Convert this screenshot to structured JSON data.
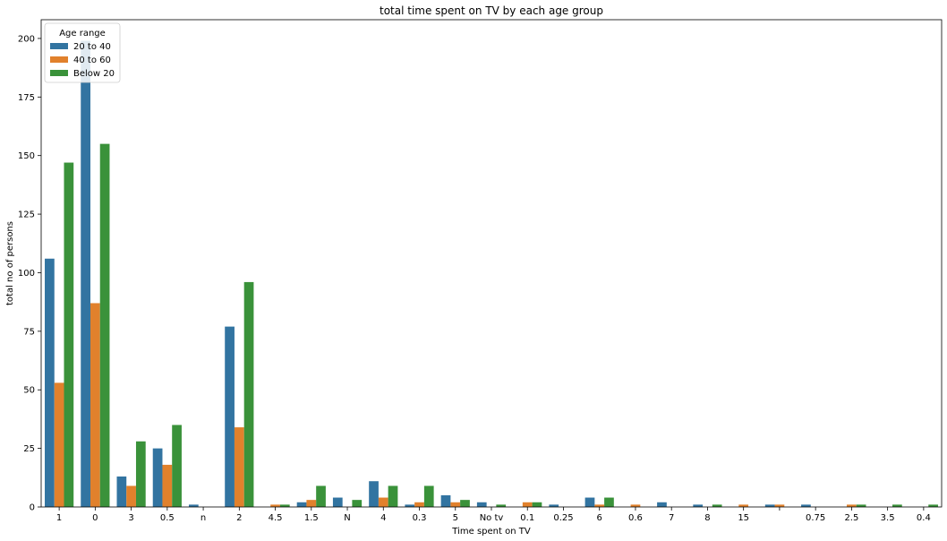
{
  "chart_data": {
    "type": "bar",
    "title": "total time spent on TV by each age group",
    "xlabel": "Time spent on TV",
    "ylabel": "total no of persons",
    "ylim": [
      0,
      208
    ],
    "yticks": [
      0,
      25,
      50,
      75,
      100,
      125,
      150,
      175,
      200
    ],
    "grid": false,
    "legend": {
      "title": "Age range",
      "placement": "top-left"
    },
    "categories": [
      "1",
      "0",
      "3",
      "0.5",
      "n",
      "2",
      "4.5",
      "1.5",
      "N",
      "4",
      "0.3",
      "5",
      "No tv",
      "0.1",
      "0.25",
      "6",
      "0.6",
      "7",
      "8",
      "15",
      "",
      "0.75",
      "2.5",
      "3.5",
      "0.4"
    ],
    "series": [
      {
        "name": "20 to 40",
        "color": "#3274a1",
        "values": [
          106,
          199,
          13,
          25,
          1,
          77,
          0,
          2,
          4,
          11,
          1,
          5,
          2,
          0,
          1,
          4,
          0,
          2,
          1,
          0,
          1,
          1,
          0,
          0,
          0
        ]
      },
      {
        "name": "40 to 60",
        "color": "#e1812c",
        "values": [
          53,
          87,
          9,
          18,
          0,
          34,
          1,
          3,
          0,
          4,
          2,
          2,
          0,
          2,
          0,
          1,
          1,
          0,
          0,
          1,
          1,
          0,
          1,
          0,
          0
        ]
      },
      {
        "name": "Below 20",
        "color": "#3a923a",
        "values": [
          147,
          155,
          28,
          35,
          0,
          96,
          1,
          9,
          3,
          9,
          9,
          3,
          1,
          2,
          0,
          4,
          0,
          0,
          1,
          0,
          0,
          0,
          1,
          1,
          1
        ]
      }
    ]
  }
}
